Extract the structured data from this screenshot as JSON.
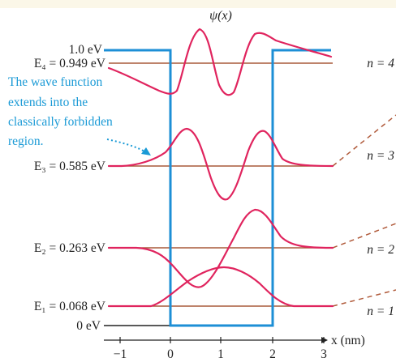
{
  "figure": {
    "psi_label": "ψ(x)",
    "well_top_label": "1.0 eV",
    "zero_label": "0 eV",
    "x_axis_label": "x (nm)",
    "x_ticks": [
      "−1",
      "0",
      "1",
      "2",
      "3"
    ],
    "annotation_lines": [
      "The wave function",
      "extends into the",
      "classically forbidden",
      "region."
    ]
  },
  "levels": [
    {
      "label": "E₄ = 0.949 eV",
      "n_label": "n = 4"
    },
    {
      "label": "E₃ = 0.585 eV",
      "n_label": "n = 3"
    },
    {
      "label": "E₂ = 0.263 eV",
      "n_label": "n = 2"
    },
    {
      "label": "E₁ = 0.068 eV",
      "n_label": "n = 1"
    }
  ],
  "colors": {
    "well": "#1d8fd6",
    "energy_line": "#a85a3a",
    "wavefunction": "#e0245e",
    "annotation": "#1a9ad6",
    "dashed": "#b05a3a",
    "text": "#222222"
  }
}
